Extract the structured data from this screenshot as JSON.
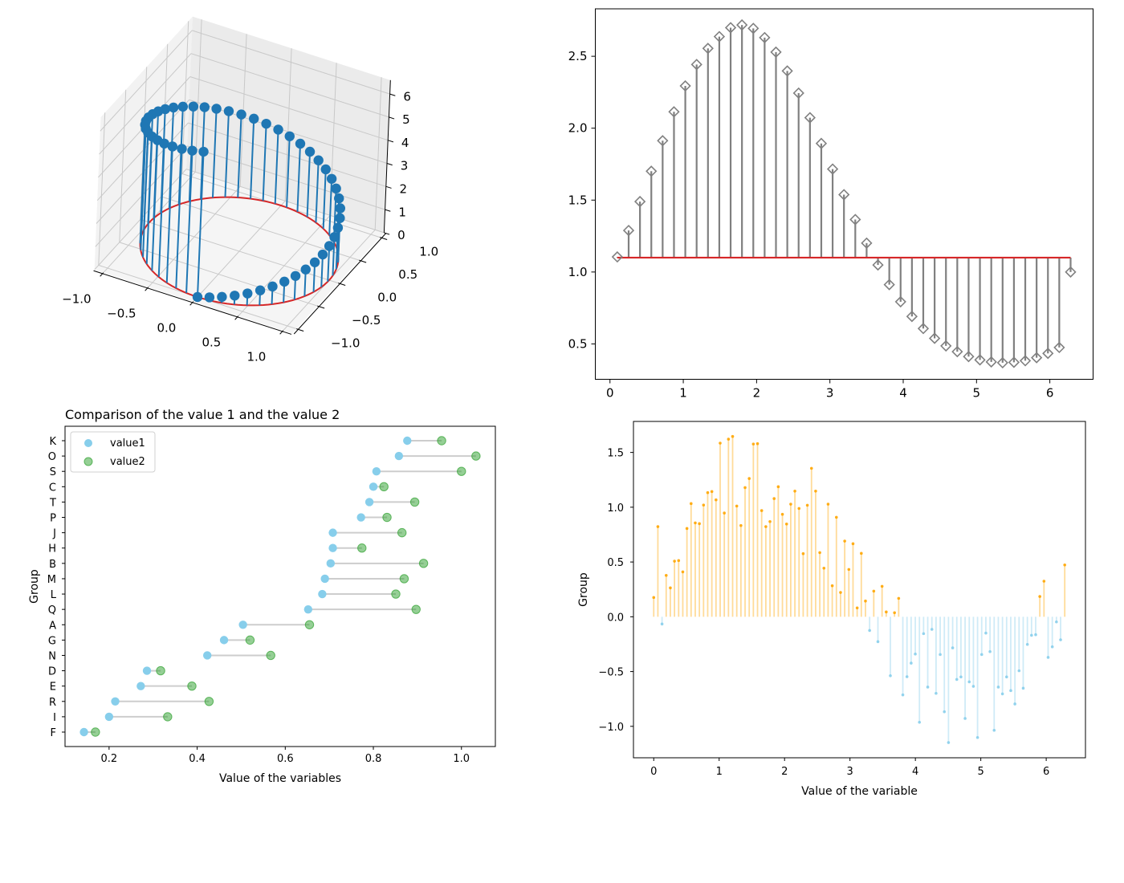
{
  "chart_data": [
    {
      "id": "helix3d",
      "type": "3d-stem",
      "title": "",
      "xlabel": "",
      "ylabel": "",
      "zlabel": "",
      "x_ticks": [
        "−1.0",
        "−0.5",
        "0.0",
        "0.5",
        "1.0"
      ],
      "y_ticks": [
        "−1.0",
        "−0.5",
        "0.0",
        "0.5",
        "1.0"
      ],
      "z_ticks": [
        "0",
        "1",
        "2",
        "3",
        "4",
        "5",
        "6"
      ],
      "xlim": [
        -1.1,
        1.1
      ],
      "ylim": [
        -1.1,
        1.1
      ],
      "zlim": [
        0,
        6.6
      ],
      "n_points": 50,
      "formula": {
        "x": "cos(theta - pi/2)",
        "y": "sin(theta - pi/2)",
        "z": "theta",
        "theta": "linspace(0, 2*pi, 50)"
      },
      "colors": {
        "stem": "#1f77b4",
        "marker": "#1f77b4",
        "baseline": "#d62728"
      }
    },
    {
      "id": "exp-sin-stem",
      "type": "stem",
      "title": "",
      "xlabel": "",
      "ylabel": "",
      "xlim": [
        -0.2,
        6.59
      ],
      "ylim": [
        0.254,
        2.83
      ],
      "x_ticks": [
        "0",
        "1",
        "2",
        "3",
        "4",
        "5",
        "6"
      ],
      "y_ticks": [
        "0.5",
        "1.0",
        "1.5",
        "2.0",
        "2.5"
      ],
      "bottom": 1.1,
      "x_start": 0.1,
      "x_end": 6.2832,
      "n_points": 41,
      "values": [
        1.105,
        1.289,
        1.49,
        1.701,
        1.913,
        2.114,
        2.294,
        2.443,
        2.555,
        2.637,
        2.699,
        2.718,
        2.694,
        2.63,
        2.529,
        2.398,
        2.244,
        2.073,
        1.894,
        1.716,
        1.538,
        1.365,
        1.201,
        1.049,
        0.912,
        0.793,
        0.691,
        0.607,
        0.539,
        0.486,
        0.446,
        0.412,
        0.389,
        0.375,
        0.369,
        0.372,
        0.383,
        0.404,
        0.434,
        0.475,
        1.0
      ],
      "colors": {
        "stem": "#808080",
        "marker": "#808080",
        "baseline": "#d62728"
      },
      "marker": "diamond-open"
    },
    {
      "id": "lollipop",
      "type": "dumbbell",
      "title": "Comparison of the value 1 and the value 2",
      "xlabel": "Value of the variables",
      "ylabel": "Group",
      "xlim": [
        0.1,
        1.077
      ],
      "x_ticks": [
        "0.2",
        "0.4",
        "0.6",
        "0.8",
        "1.0"
      ],
      "categories": [
        "K",
        "O",
        "S",
        "C",
        "T",
        "P",
        "J",
        "H",
        "B",
        "M",
        "L",
        "Q",
        "A",
        "G",
        "N",
        "D",
        "E",
        "R",
        "I",
        "F"
      ],
      "series": [
        {
          "name": "value1",
          "color": "#87ceeb",
          "values": [
            0.877,
            0.858,
            0.807,
            0.8,
            0.791,
            0.772,
            0.708,
            0.708,
            0.703,
            0.69,
            0.684,
            0.652,
            0.504,
            0.461,
            0.423,
            0.286,
            0.272,
            0.214,
            0.2,
            0.143
          ]
        },
        {
          "name": "value2",
          "color": "#2ca02c",
          "values": [
            0.955,
            1.033,
            1.0,
            0.824,
            0.894,
            0.831,
            0.865,
            0.774,
            0.914,
            0.87,
            0.851,
            0.897,
            0.655,
            0.52,
            0.567,
            0.317,
            0.388,
            0.427,
            0.333,
            0.169
          ]
        }
      ],
      "legend": {
        "position": "upper-left",
        "entries": [
          "value1",
          "value2"
        ]
      },
      "connector_color": "#c0c0c0"
    },
    {
      "id": "noisy-sine-stem",
      "type": "stem",
      "title": "",
      "xlabel": "Value of the variable",
      "ylabel": "Group",
      "xlim": [
        -0.31,
        6.6
      ],
      "ylim": [
        -1.287,
        1.783
      ],
      "x_ticks": [
        "0",
        "1",
        "2",
        "3",
        "4",
        "5",
        "6"
      ],
      "y_ticks": [
        "−1.0",
        "−0.5",
        "0.0",
        "0.5",
        "1.0",
        "1.5"
      ],
      "x_start": 0,
      "x_end": 6.2832,
      "n_points": 100,
      "values": [
        0.176,
        0.823,
        -0.066,
        0.378,
        0.264,
        0.508,
        0.513,
        0.41,
        0.806,
        1.033,
        0.857,
        0.85,
        1.02,
        1.133,
        1.143,
        1.067,
        1.585,
        0.947,
        1.621,
        1.646,
        1.011,
        0.833,
        1.179,
        1.262,
        1.577,
        1.58,
        0.969,
        0.823,
        0.869,
        1.079,
        1.187,
        0.935,
        0.847,
        1.028,
        1.147,
        0.989,
        0.576,
        1.018,
        1.355,
        1.147,
        0.586,
        0.444,
        1.028,
        0.283,
        0.908,
        0.222,
        0.691,
        0.432,
        0.667,
        0.081,
        0.579,
        0.144,
        -0.125,
        0.234,
        -0.227,
        0.278,
        0.044,
        -0.538,
        0.037,
        0.168,
        -0.713,
        -0.547,
        -0.423,
        -0.34,
        -0.963,
        -0.154,
        -0.642,
        -0.115,
        -0.699,
        -0.345,
        -0.867,
        -1.148,
        -0.284,
        -0.572,
        -0.549,
        -0.928,
        -0.594,
        -0.635,
        -1.102,
        -0.345,
        -0.149,
        -0.318,
        -1.036,
        -0.642,
        -0.704,
        -0.549,
        -0.674,
        -0.796,
        -0.493,
        -0.652,
        -0.252,
        -0.169,
        -0.164,
        0.185,
        0.325,
        -0.371,
        -0.274,
        -0.047,
        -0.21,
        0.473
      ],
      "colors": {
        "positive": "#ffa500",
        "negative": "#87ceeb"
      }
    }
  ]
}
